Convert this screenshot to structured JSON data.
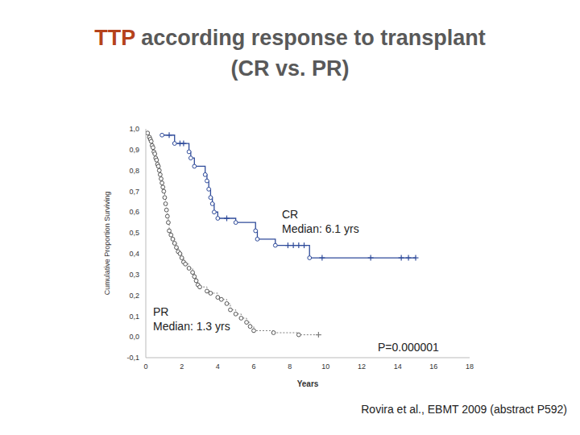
{
  "chart_data": {
    "type": "line",
    "title": "TTP according response to transplant (CR vs. PR)",
    "x_label": "Years",
    "y_label": "Cumulative Proportion Surviving",
    "xlim": [
      0,
      18
    ],
    "xticks": [
      0,
      2,
      4,
      6,
      8,
      10,
      12,
      14,
      16,
      18
    ],
    "ylim": [
      -0.1,
      1.0
    ],
    "yticks": [
      {
        "value": -0.1,
        "label": "-0,1"
      },
      {
        "value": 0.0,
        "label": "0,0"
      },
      {
        "value": 0.1,
        "label": "0,1"
      },
      {
        "value": 0.2,
        "label": "0,2"
      },
      {
        "value": 0.3,
        "label": "0,3"
      },
      {
        "value": 0.4,
        "label": "0,4"
      },
      {
        "value": 0.5,
        "label": "0,5"
      },
      {
        "value": 0.6,
        "label": "0,6"
      },
      {
        "value": 0.7,
        "label": "0,7"
      },
      {
        "value": 0.8,
        "label": "0,8"
      },
      {
        "value": 0.9,
        "label": "0,9"
      },
      {
        "value": 1.0,
        "label": "1,0"
      }
    ],
    "series": [
      {
        "name": "CR",
        "color": "#2f4b9a",
        "line_style": "solid",
        "marker": "circle",
        "x": [
          0.9,
          1.3,
          1.6,
          1.9,
          2.1,
          2.4,
          2.5,
          2.7,
          3.3,
          3.4,
          3.5,
          3.6,
          3.7,
          3.8,
          4.0,
          4.5,
          5.0,
          6.1,
          6.2,
          7.2,
          7.9,
          8.2,
          8.5,
          8.8,
          9.1,
          9.8,
          12.5,
          14.2,
          14.6,
          15.0
        ],
        "values": [
          0.97,
          0.97,
          0.93,
          0.93,
          0.93,
          0.89,
          0.86,
          0.82,
          0.78,
          0.75,
          0.71,
          0.67,
          0.64,
          0.6,
          0.57,
          0.57,
          0.55,
          0.51,
          0.47,
          0.44,
          0.44,
          0.44,
          0.44,
          0.44,
          0.38,
          0.38,
          0.38,
          0.38,
          0.38,
          0.38
        ],
        "censored": [
          1.3,
          1.9,
          2.1,
          4.5,
          7.9,
          8.2,
          8.5,
          8.8,
          9.8,
          12.5,
          14.2,
          14.6,
          15.0
        ]
      },
      {
        "name": "PR",
        "color": "#7f7f7f",
        "line_style": "dotted",
        "marker": "circle",
        "x": [
          0.1,
          0.2,
          0.25,
          0.3,
          0.35,
          0.4,
          0.45,
          0.5,
          0.55,
          0.6,
          0.65,
          0.7,
          0.75,
          0.8,
          0.85,
          0.9,
          0.95,
          1.0,
          1.05,
          1.1,
          1.15,
          1.2,
          1.25,
          1.3,
          1.4,
          1.5,
          1.6,
          1.7,
          1.8,
          1.9,
          2.0,
          2.1,
          2.2,
          2.4,
          2.6,
          2.7,
          2.8,
          2.9,
          3.0,
          3.4,
          3.6,
          4.0,
          4.2,
          4.5,
          4.7,
          5.0,
          5.3,
          5.6,
          5.8,
          6.0,
          7.1,
          8.5,
          9.6
        ],
        "values": [
          0.98,
          0.96,
          0.95,
          0.94,
          0.92,
          0.91,
          0.89,
          0.88,
          0.86,
          0.85,
          0.83,
          0.82,
          0.8,
          0.78,
          0.76,
          0.74,
          0.72,
          0.7,
          0.67,
          0.64,
          0.61,
          0.58,
          0.55,
          0.51,
          0.49,
          0.47,
          0.45,
          0.43,
          0.41,
          0.4,
          0.38,
          0.36,
          0.35,
          0.33,
          0.31,
          0.29,
          0.27,
          0.25,
          0.24,
          0.22,
          0.21,
          0.19,
          0.18,
          0.16,
          0.13,
          0.11,
          0.09,
          0.07,
          0.05,
          0.03,
          0.02,
          0.01,
          0.01
        ],
        "censored": [
          9.6
        ]
      }
    ],
    "annotations": [
      "CR\nMedian: 6.1 yrs",
      "PR\nMedian: 1.3 yrs",
      "P=0.000001"
    ],
    "source": "Rovira et al., EBMT 2009 (abstract P592)"
  }
}
